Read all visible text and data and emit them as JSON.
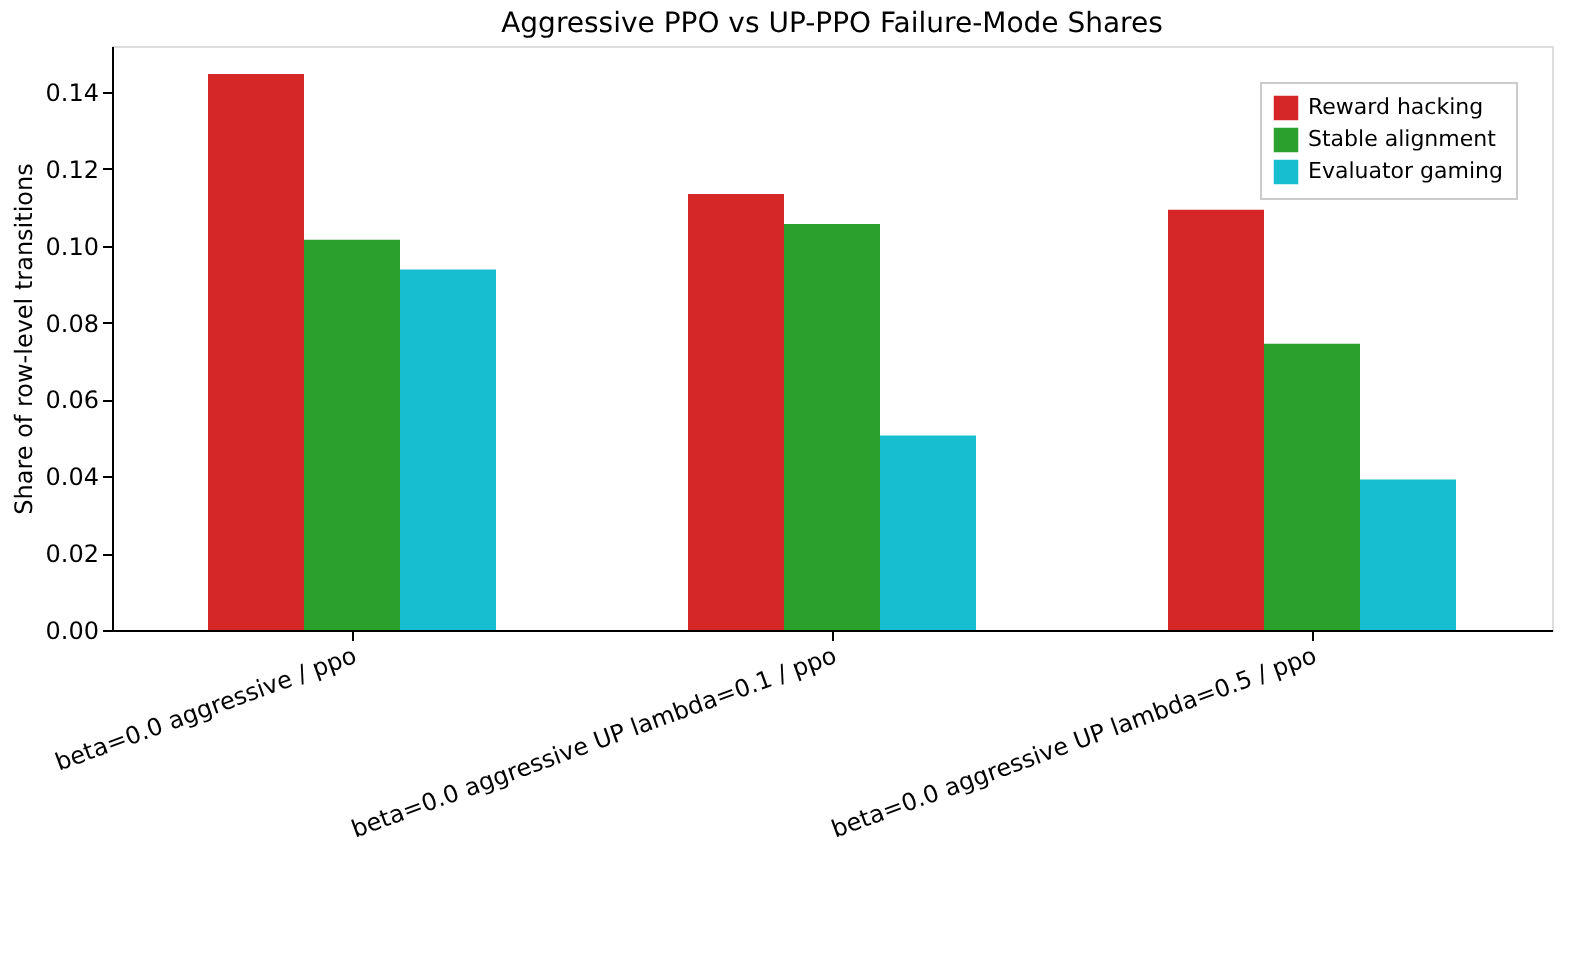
{
  "chart_data": {
    "type": "bar",
    "title": "Aggressive PPO vs UP-PPO Failure-Mode Shares",
    "ylabel": "Share of row-level transitions",
    "categories": [
      "beta=0.0 aggressive / ppo",
      "beta=0.0 aggressive UP lambda=0.1 / ppo",
      "beta=0.0 aggressive UP lambda=0.5 / ppo"
    ],
    "series": [
      {
        "name": "Reward hacking",
        "color": "#d62728",
        "values": [
          0.1447,
          0.1135,
          0.1094
        ]
      },
      {
        "name": "Stable alignment",
        "color": "#2ca02c",
        "values": [
          0.1016,
          0.1057,
          0.0745
        ]
      },
      {
        "name": "Evaluator gaming",
        "color": "#17becf",
        "values": [
          0.0938,
          0.0506,
          0.0392
        ]
      }
    ],
    "ylim": [
      0,
      0.152
    ],
    "yticks": [
      {
        "value": 0,
        "label": "0.00"
      },
      {
        "value": 0.02,
        "label": "0.02"
      },
      {
        "value": 0.04,
        "label": "0.04"
      },
      {
        "value": 0.06,
        "label": "0.06"
      },
      {
        "value": 0.08,
        "label": "0.08"
      },
      {
        "value": 0.1,
        "label": "0.10"
      },
      {
        "value": 0.12,
        "label": "0.12"
      },
      {
        "value": 0.14,
        "label": "0.14"
      }
    ],
    "grid": false,
    "legend": "top right"
  }
}
